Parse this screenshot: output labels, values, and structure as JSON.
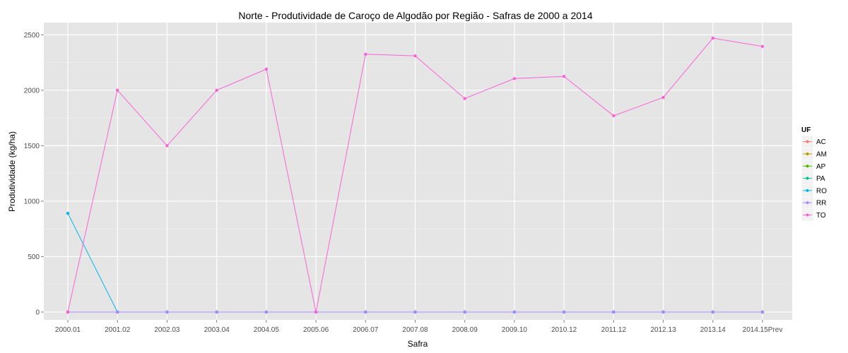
{
  "chart_data": {
    "type": "line",
    "title": "Norte  - Produtividade de Caroço de Algodão por Região - Safras de 2000 a 2014",
    "xlabel": "Safra",
    "ylabel": "Produtividade (kg/ha)",
    "categories": [
      "2000.01",
      "2001.02",
      "2002.03",
      "2003.04",
      "2004.05",
      "2005.06",
      "2006.07",
      "2007.08",
      "2008.09",
      "2009.10",
      "2010.12",
      "2011.12",
      "2012.13",
      "2013.14",
      "2014.15Prev"
    ],
    "yticks": [
      0,
      500,
      1000,
      1500,
      2000,
      2500
    ],
    "ylim": [
      -70,
      2610
    ],
    "grid": true,
    "legend_title": "UF",
    "legend_position": "right",
    "series": [
      {
        "name": "AC",
        "color": "#F8766D",
        "values": [
          0,
          0,
          0,
          0,
          0,
          0,
          0,
          0,
          0,
          0,
          0,
          0,
          0,
          0,
          0
        ]
      },
      {
        "name": "AM",
        "color": "#C49A00",
        "values": [
          0,
          0,
          0,
          0,
          0,
          0,
          0,
          0,
          0,
          0,
          0,
          0,
          0,
          0,
          0
        ]
      },
      {
        "name": "AP",
        "color": "#53B400",
        "values": [
          0,
          0,
          0,
          0,
          0,
          0,
          0,
          0,
          0,
          0,
          0,
          0,
          0,
          0,
          0
        ]
      },
      {
        "name": "PA",
        "color": "#00C094",
        "values": [
          0,
          0,
          0,
          0,
          0,
          0,
          0,
          0,
          0,
          0,
          0,
          0,
          0,
          0,
          0
        ]
      },
      {
        "name": "RO",
        "color": "#00B6EB",
        "values": [
          890,
          0,
          0,
          0,
          0,
          0,
          0,
          0,
          0,
          0,
          0,
          0,
          0,
          0,
          0
        ]
      },
      {
        "name": "RR",
        "color": "#A58AFF",
        "values": [
          0,
          0,
          0,
          0,
          0,
          0,
          0,
          0,
          0,
          0,
          0,
          0,
          0,
          0,
          0
        ]
      },
      {
        "name": "TO",
        "color": "#FB61D7",
        "values": [
          0,
          2000,
          1500,
          2000,
          2190,
          0,
          2325,
          2310,
          1925,
          2105,
          2125,
          1770,
          1935,
          2470,
          2395
        ]
      }
    ]
  }
}
